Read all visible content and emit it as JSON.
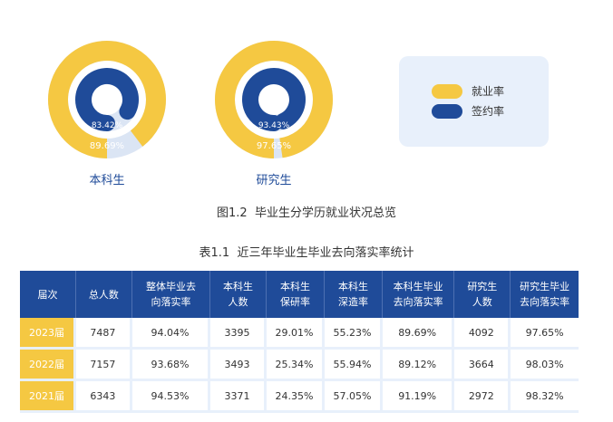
{
  "colors": {
    "employment": "#f5c842",
    "signing": "#1f4b99",
    "track": "#dbe5f4"
  },
  "chart_data": [
    {
      "type": "donut",
      "title": "本科生",
      "series": [
        {
          "name": "就业率",
          "value": 89.69,
          "label": "89.69%"
        },
        {
          "name": "签约率",
          "value": 83.42,
          "label": "83.42%"
        }
      ]
    },
    {
      "type": "donut",
      "title": "研究生",
      "series": [
        {
          "name": "就业率",
          "value": 97.65,
          "label": "97.65%"
        },
        {
          "name": "签约率",
          "value": 93.43,
          "label": "93.43%"
        }
      ]
    }
  ],
  "legend": {
    "employment": "就业率",
    "signing": "签约率"
  },
  "figure_caption": "图1.2  毕业生分学历就业状况总览",
  "table_caption": "表1.1  近三年毕业生毕业去向落实率统计",
  "table": {
    "headers": [
      "届次",
      "总人数",
      "整体毕业去\n向落实率",
      "本科生\n人数",
      "本科生\n保研率",
      "本科生\n深造率",
      "本科生毕业\n去向落实率",
      "研究生\n人数",
      "研究生毕业\n去向落实率"
    ],
    "rows": [
      [
        "2023届",
        "7487",
        "94.04%",
        "3395",
        "29.01%",
        "55.23%",
        "89.69%",
        "4092",
        "97.65%"
      ],
      [
        "2022届",
        "7157",
        "93.68%",
        "3493",
        "25.34%",
        "55.94%",
        "89.12%",
        "3664",
        "98.03%"
      ],
      [
        "2021届",
        "6343",
        "94.53%",
        "3371",
        "24.35%",
        "57.05%",
        "91.19%",
        "2972",
        "98.32%"
      ]
    ]
  }
}
